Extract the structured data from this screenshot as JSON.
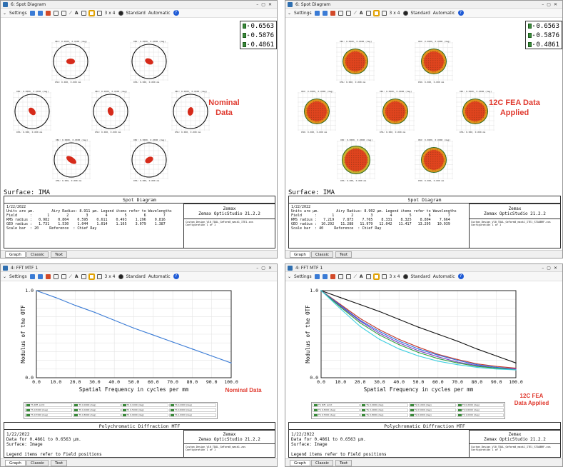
{
  "spot_left": {
    "title": "6: Spot Diagram",
    "toolbar": {
      "settings": "Settings",
      "grid": "3 x 4",
      "standard": "Standard",
      "automatic": "Automatic"
    },
    "wavelengths": [
      "0.6563",
      "0.5876",
      "0.4861"
    ],
    "label": [
      "Nominal",
      "Data"
    ],
    "surface": "Surface: IMA",
    "panel": {
      "title": "Spot Diagram",
      "brand1": "Zemax",
      "brand2": "Zemax OpticStudio 21.2.2",
      "lines": [
        "1/22/2022",
        "Units are µm.        Airy Radius: 8.911 µm. Legend items refer to Wavelengths",
        "Field      :       1        2        3        4        5        6        7",
        "RMS radius :   0.982    0.804    0.595    0.611    0.493    1.296    0.816",
        "GEO radius :   1.731    1.530    1.044    1.014    1.165    3.079    1.387",
        "Scale bar  : 20     Reference  : Chief Ray"
      ],
      "small": [
        "Custom_Design_V10_TDAL_GeForm0_mask1_ITE1.zos",
        "Configuration 1 of 1"
      ]
    },
    "tabs": [
      "Graph",
      "Classic",
      "Text"
    ]
  },
  "spot_right": {
    "title": "6: Spot Diagram",
    "toolbar": {
      "settings": "Settings",
      "grid": "3 x 4",
      "standard": "Standard",
      "automatic": "Automatic"
    },
    "wavelengths": [
      "0.6563",
      "0.5876",
      "0.4861"
    ],
    "label": [
      "12C FEA Data",
      "Applied"
    ],
    "surface": "Surface: IMA",
    "panel": {
      "title": "Spot Diagram",
      "brand1": "Zemax",
      "brand2": "Zemax OpticStudio 21.2.2",
      "lines": [
        "1/22/2022",
        "Units are µm.        Airy Radius: 8.902 µm. Legend items refer to Wavelengths",
        "Field      :       1        2        3        4        5        6        7",
        "RMS radius :   7.219    7.873    7.765    8.331    8.325    8.804    7.664",
        "GEO radius :  10.292   11.288   11.979   12.042   11.417   13.295   10.939",
        "Scale bar  : 40     Reference  : Chief Ray"
      ],
      "small": [
        "Custom_Design_V10_TDAL_GeForm0_mask1_ITE1_STAOBRF.zos",
        "Configuration 1 of 1"
      ]
    },
    "tabs": [
      "Graph",
      "Classic",
      "Text"
    ]
  },
  "mtf_left": {
    "title": "4: FFT MTF 1",
    "toolbar": {
      "settings": "Settings",
      "grid": "3 x 4",
      "standard": "Standard",
      "automatic": "Automatic"
    },
    "label": [
      "Nominal Data"
    ],
    "panel": {
      "title": "Polychromatic Diffraction MTF",
      "brand1": "Zemax",
      "brand2": "Zemax OpticStudio 21.2.2",
      "lines": [
        "1/22/2022",
        "Data for 0.4861 to 0.6563 µm.",
        "Surface: Image",
        "",
        "Legend items refer to Field positions"
      ],
      "small": [
        "Custom_Design_V10_TDAL_GeForm0_mask1.zos",
        "Configuration 1 of 1"
      ]
    },
    "tabs": [
      "Graph",
      "Classic",
      "Text"
    ]
  },
  "mtf_right": {
    "title": "4: FFT MTF 1",
    "toolbar": {
      "settings": "Settings",
      "grid": "3 x 4",
      "standard": "Standard",
      "automatic": "Automatic"
    },
    "label": [
      "12C FEA",
      "Data Applied"
    ],
    "panel": {
      "title": "Polychromatic Diffraction MTF",
      "brand1": "Zemax",
      "brand2": "Zemax OpticStudio 21.2.2",
      "lines": [
        "1/22/2022",
        "Data for 0.4861 to 0.6563 µm.",
        "Surface: Image",
        "",
        "Legend items refer to Field positions"
      ],
      "small": [
        "Custom_Design_V10_TDAL_GeForm0_mask1_ITE1_STAOBRF.zos",
        "Configuration 1 of 1"
      ]
    },
    "tabs": [
      "Graph",
      "Classic",
      "Text"
    ]
  },
  "chart_data": [
    {
      "type": "line",
      "xlabel": "Spatial Frequency in cycles per mm",
      "ylabel": "Modulus of the OTF",
      "xlim": [
        0,
        100
      ],
      "ylim": [
        0,
        1.0
      ],
      "xticks": [
        "0.0",
        "10.0",
        "20.0",
        "30.0",
        "40.0",
        "50.0",
        "60.0",
        "70.0",
        "80.0",
        "90.0",
        "100.0"
      ],
      "yticks": [
        "0.0",
        "0.1",
        "0.2",
        "0.3",
        "0.4",
        "0.5",
        "0.6",
        "0.7",
        "0.8",
        "0.9",
        "1.0"
      ],
      "x": [
        0,
        10,
        20,
        30,
        40,
        50,
        60,
        70,
        80,
        90,
        100
      ],
      "series": [
        {
          "values": [
            1.0,
            0.92,
            0.83,
            0.75,
            0.66,
            0.57,
            0.49,
            0.41,
            0.33,
            0.25,
            0.17
          ]
        }
      ]
    },
    {
      "type": "line",
      "xlabel": "Spatial Frequency in cycles per mm",
      "ylabel": "Modulus of the OTF",
      "xlim": [
        0,
        100
      ],
      "ylim": [
        0,
        1.0
      ],
      "xticks": [
        "0.0",
        "10.0",
        "20.0",
        "30.0",
        "40.0",
        "50.0",
        "60.0",
        "70.0",
        "80.0",
        "90.0",
        "100.0"
      ],
      "yticks": [
        "0.0",
        "0.1",
        "0.2",
        "0.3",
        "0.4",
        "0.5",
        "0.6",
        "0.7",
        "0.8",
        "0.9",
        "1.0"
      ],
      "x": [
        0,
        10,
        20,
        30,
        40,
        50,
        60,
        70,
        80,
        90,
        100
      ],
      "series": [
        {
          "color": "#111111",
          "values": [
            1.0,
            0.92,
            0.84,
            0.76,
            0.67,
            0.58,
            0.5,
            0.42,
            0.33,
            0.25,
            0.17
          ]
        },
        {
          "color": "#c0392b",
          "values": [
            1.0,
            0.84,
            0.68,
            0.55,
            0.44,
            0.35,
            0.27,
            0.21,
            0.16,
            0.13,
            0.11
          ]
        },
        {
          "color": "#2d6cdf",
          "values": [
            1.0,
            0.83,
            0.66,
            0.53,
            0.42,
            0.33,
            0.26,
            0.2,
            0.15,
            0.12,
            0.1
          ]
        },
        {
          "color": "#7a3dc4",
          "values": [
            1.0,
            0.82,
            0.65,
            0.51,
            0.4,
            0.31,
            0.24,
            0.18,
            0.14,
            0.11,
            0.1
          ]
        },
        {
          "color": "#2e9e3a",
          "values": [
            1.0,
            0.81,
            0.63,
            0.49,
            0.38,
            0.29,
            0.22,
            0.17,
            0.13,
            0.11,
            0.09
          ]
        },
        {
          "color": "#3ccfe0",
          "values": [
            1.0,
            0.79,
            0.59,
            0.44,
            0.33,
            0.25,
            0.19,
            0.15,
            0.12,
            0.1,
            0.09
          ]
        }
      ]
    }
  ],
  "colors": {
    "accent_red": "#e03a2f",
    "nominal_line": "#3a7bd5"
  },
  "icons": [
    "settings-icon",
    "refresh-icon",
    "save-icon",
    "print-icon",
    "pencil-icon",
    "rectangle-icon",
    "line-icon",
    "text-icon",
    "copy-icon",
    "help-icon"
  ]
}
